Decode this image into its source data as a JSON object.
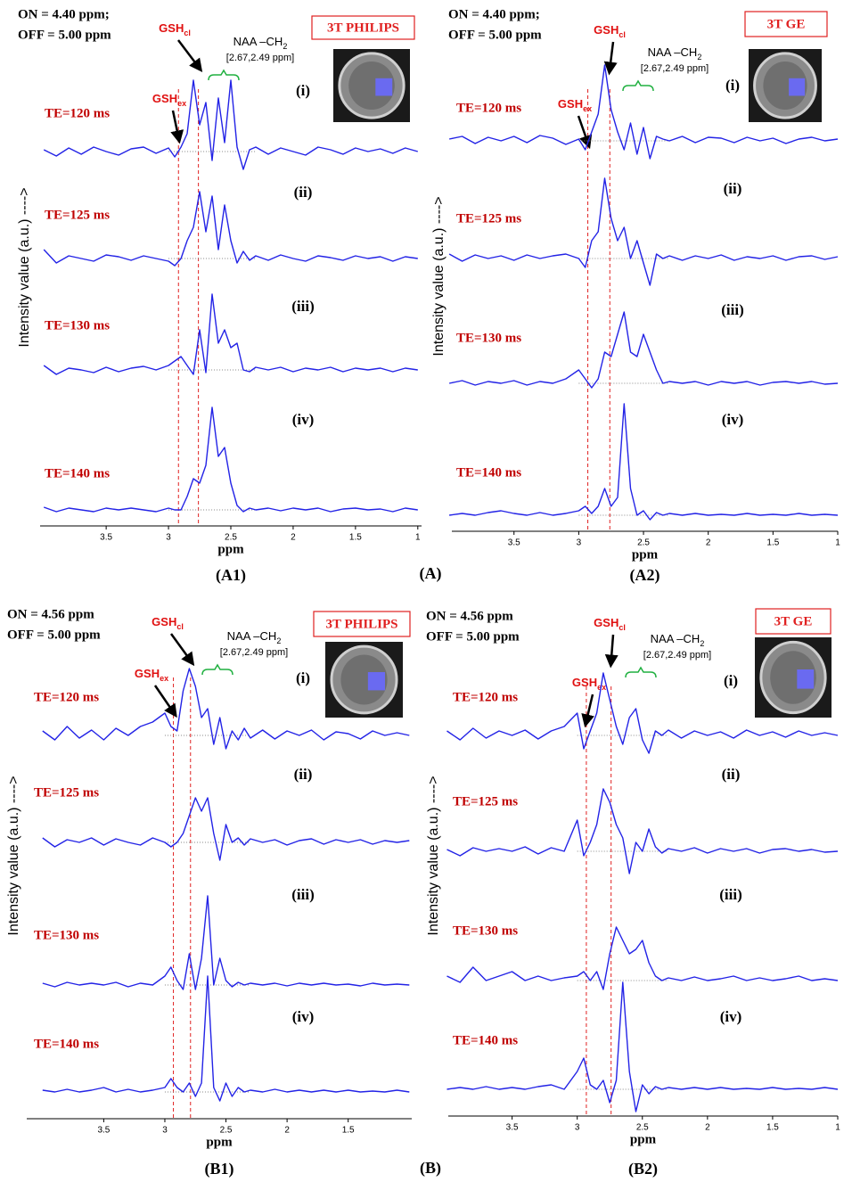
{
  "figure": {
    "group_labels": [
      "(A)",
      "(B)"
    ]
  },
  "chart_data": [
    {
      "type": "line",
      "panel_label": "(A1)",
      "acquisition": [
        "ON = 4.40 ppm;",
        "OFF = 5.00 ppm"
      ],
      "scanner": "3T PHILIPS",
      "ylabel": "Intensity value (a.u.) ---->",
      "xlabel": "ppm",
      "xlim": [
        4.03,
        0.97
      ],
      "xticks": [
        3.5,
        3,
        2.5,
        2,
        1.5,
        1
      ],
      "markers": [
        {
          "name": "GSH",
          "sub": "ex",
          "x": 2.92
        },
        {
          "name": "GSH",
          "sub": "cl",
          "x": 2.76
        }
      ],
      "annotation": {
        "name": "NAA –CH",
        "sub": "2",
        "range": "[2.67,2.49 ppm]"
      },
      "x": [
        4.0,
        3.9,
        3.8,
        3.7,
        3.6,
        3.5,
        3.4,
        3.3,
        3.2,
        3.1,
        3.0,
        2.95,
        2.9,
        2.85,
        2.8,
        2.75,
        2.7,
        2.65,
        2.6,
        2.55,
        2.5,
        2.45,
        2.4,
        2.35,
        2.3,
        2.2,
        2.1,
        2.0,
        1.9,
        1.8,
        1.7,
        1.6,
        1.5,
        1.4,
        1.3,
        1.2,
        1.1,
        1.0
      ],
      "series": [
        {
          "name": "TE=120 ms",
          "tag": "(i)",
          "color": "#2323e6",
          "values": [
            0.02,
            -0.05,
            0.04,
            -0.03,
            0.05,
            0.0,
            -0.04,
            0.03,
            0.05,
            -0.02,
            0.04,
            -0.06,
            0.05,
            0.2,
            0.8,
            0.3,
            0.55,
            -0.1,
            0.6,
            0.1,
            0.8,
            0.05,
            -0.2,
            0.02,
            0.05,
            -0.03,
            0.04,
            0.0,
            -0.04,
            0.05,
            0.02,
            -0.03,
            0.04,
            0.0,
            0.03,
            -0.02,
            0.04,
            0.0
          ]
        },
        {
          "name": "TE=125 ms",
          "tag": "(ii)",
          "color": "#2323e6",
          "values": [
            0.1,
            -0.05,
            0.03,
            0.0,
            -0.03,
            0.04,
            0.02,
            -0.02,
            0.03,
            0.0,
            -0.03,
            -0.08,
            0.0,
            0.2,
            0.35,
            0.75,
            0.3,
            0.7,
            0.1,
            0.6,
            0.2,
            -0.05,
            0.08,
            -0.02,
            0.03,
            -0.02,
            0.04,
            0.0,
            -0.03,
            0.03,
            0.01,
            -0.02,
            0.03,
            0.0,
            0.02,
            -0.03,
            0.02,
            0.0
          ]
        },
        {
          "name": "TE=130 ms",
          "tag": "(iii)",
          "color": "#2323e6",
          "values": [
            0.05,
            -0.05,
            0.02,
            0.0,
            -0.03,
            0.03,
            -0.02,
            0.02,
            0.04,
            0.0,
            0.05,
            0.1,
            0.15,
            0.05,
            -0.05,
            0.45,
            -0.03,
            0.85,
            0.3,
            0.45,
            0.25,
            0.3,
            0.0,
            -0.02,
            0.03,
            0.0,
            0.03,
            -0.02,
            0.02,
            0.0,
            0.03,
            -0.02,
            0.02,
            0.0,
            0.02,
            -0.02,
            0.02,
            0.0
          ]
        },
        {
          "name": "TE=140 ms",
          "tag": "(iv)",
          "color": "#2323e6",
          "values": [
            0.03,
            -0.02,
            0.02,
            0.0,
            -0.02,
            0.02,
            0.0,
            0.02,
            0.0,
            -0.02,
            0.02,
            0.0,
            0.0,
            0.15,
            0.35,
            0.3,
            0.5,
            1.15,
            0.6,
            0.7,
            0.3,
            0.05,
            -0.02,
            0.02,
            0.0,
            0.02,
            -0.01,
            0.02,
            0.0,
            0.02,
            -0.02,
            0.01,
            0.02,
            0.0,
            0.01,
            -0.02,
            0.02,
            0.0
          ]
        }
      ]
    },
    {
      "type": "line",
      "panel_label": "(A2)",
      "acquisition": [
        "ON = 4.40 ppm;",
        "OFF = 5.00 ppm"
      ],
      "scanner": "3T  GE",
      "ylabel": "Intensity value (a.u.) ---->",
      "xlabel": "ppm",
      "xlim": [
        3.98,
        1.0
      ],
      "xticks": [
        3.5,
        3,
        2.5,
        2,
        1.5,
        1
      ],
      "markers": [
        {
          "name": "GSH",
          "sub": "ex",
          "x": 2.93
        },
        {
          "name": "GSH",
          "sub": "cl",
          "x": 2.76
        }
      ],
      "annotation": {
        "name": "NAA –CH",
        "sub": "2",
        "range": "[2.67,2.49 ppm]"
      },
      "x": [
        4.0,
        3.9,
        3.8,
        3.7,
        3.6,
        3.5,
        3.4,
        3.3,
        3.2,
        3.1,
        3.0,
        2.95,
        2.9,
        2.85,
        2.8,
        2.75,
        2.7,
        2.65,
        2.6,
        2.55,
        2.5,
        2.45,
        2.4,
        2.35,
        2.3,
        2.2,
        2.1,
        2.0,
        1.9,
        1.8,
        1.7,
        1.6,
        1.5,
        1.4,
        1.3,
        1.2,
        1.1,
        1.0
      ],
      "series": [
        {
          "name": "TE=120 ms",
          "tag": "(i)",
          "color": "#2323e6",
          "values": [
            0.02,
            0.05,
            -0.03,
            0.04,
            0.0,
            0.05,
            -0.02,
            0.06,
            0.03,
            -0.04,
            0.02,
            -0.1,
            0.1,
            0.3,
            0.85,
            0.35,
            0.1,
            -0.1,
            0.2,
            -0.15,
            0.15,
            -0.2,
            0.05,
            0.02,
            0.0,
            0.05,
            -0.02,
            0.04,
            0.03,
            -0.02,
            0.04,
            0.0,
            0.03,
            -0.03,
            0.02,
            0.04,
            0.0,
            0.02
          ]
        },
        {
          "name": "TE=125 ms",
          "tag": "(ii)",
          "color": "#2323e6",
          "values": [
            0.05,
            -0.03,
            0.04,
            0.0,
            0.03,
            -0.02,
            0.04,
            0.0,
            0.03,
            0.05,
            0.0,
            -0.1,
            0.2,
            0.3,
            0.9,
            0.45,
            0.2,
            0.35,
            0.0,
            0.2,
            -0.05,
            -0.3,
            0.05,
            0.0,
            0.03,
            -0.02,
            0.03,
            0.0,
            0.04,
            -0.02,
            0.02,
            0.0,
            0.03,
            -0.02,
            0.02,
            0.03,
            -0.01,
            0.02
          ]
        },
        {
          "name": "TE=130 ms",
          "tag": "(iii)",
          "color": "#2323e6",
          "values": [
            0.0,
            0.03,
            -0.02,
            0.02,
            0.0,
            0.03,
            -0.02,
            0.02,
            0.0,
            0.05,
            0.15,
            0.05,
            -0.05,
            0.05,
            0.35,
            0.3,
            0.55,
            0.8,
            0.35,
            0.3,
            0.55,
            0.35,
            0.15,
            0.0,
            0.02,
            0.0,
            0.02,
            -0.02,
            0.02,
            0.0,
            0.02,
            -0.02,
            0.01,
            0.02,
            0.0,
            0.02,
            -0.01,
            0.0
          ]
        },
        {
          "name": "TE=140 ms",
          "tag": "(iv)",
          "color": "#2323e6",
          "values": [
            0.0,
            0.02,
            0.0,
            0.03,
            0.05,
            0.02,
            0.0,
            0.03,
            0.0,
            0.02,
            0.05,
            0.1,
            0.02,
            0.1,
            0.3,
            0.1,
            0.2,
            1.25,
            0.3,
            0.0,
            0.05,
            -0.05,
            0.03,
            0.0,
            0.02,
            0.0,
            0.02,
            0.0,
            0.01,
            0.0,
            0.02,
            0.0,
            0.01,
            0.0,
            0.02,
            0.0,
            0.01,
            0.0
          ]
        }
      ]
    },
    {
      "type": "line",
      "panel_label": "(B1)",
      "acquisition": [
        "ON = 4.56 ppm",
        "OFF = 5.00 ppm"
      ],
      "scanner": "3T  PHILIPS",
      "ylabel": "Intensity value (a.u.) ---->",
      "xlabel": "ppm",
      "xlim": [
        4.13,
        0.98
      ],
      "xticks": [
        3.5,
        3,
        2.5,
        2,
        1.5
      ],
      "markers": [
        {
          "name": "GSH",
          "sub": "ex",
          "x": 2.93
        },
        {
          "name": "GSH",
          "sub": "cl",
          "x": 2.79
        }
      ],
      "annotation": {
        "name": "NAA –CH",
        "sub": "2",
        "range": "[2.67,2.49 ppm]"
      },
      "x": [
        4.0,
        3.9,
        3.8,
        3.7,
        3.6,
        3.5,
        3.4,
        3.3,
        3.2,
        3.1,
        3.0,
        2.95,
        2.9,
        2.85,
        2.8,
        2.75,
        2.7,
        2.65,
        2.6,
        2.55,
        2.5,
        2.45,
        2.4,
        2.35,
        2.3,
        2.2,
        2.1,
        2.0,
        1.9,
        1.8,
        1.7,
        1.6,
        1.5,
        1.4,
        1.3,
        1.2,
        1.1,
        1.0
      ],
      "series": [
        {
          "name": "TE=120 ms",
          "tag": "(i)",
          "color": "#2323e6",
          "values": [
            0.05,
            -0.05,
            0.1,
            -0.03,
            0.06,
            -0.05,
            0.08,
            0.0,
            0.1,
            0.15,
            0.25,
            0.1,
            0.05,
            0.5,
            0.75,
            0.55,
            0.2,
            0.3,
            -0.1,
            0.2,
            -0.15,
            0.05,
            -0.05,
            0.08,
            -0.03,
            0.06,
            -0.04,
            0.05,
            0.0,
            0.06,
            -0.05,
            0.04,
            0.02,
            -0.04,
            0.05,
            0.0,
            0.03,
            0.0
          ]
        },
        {
          "name": "TE=125 ms",
          "tag": "(ii)",
          "color": "#2323e6",
          "values": [
            0.05,
            -0.05,
            0.03,
            0.0,
            0.05,
            -0.03,
            0.04,
            0.0,
            -0.03,
            0.05,
            0.0,
            -0.05,
            0.0,
            0.1,
            0.3,
            0.5,
            0.35,
            0.5,
            0.1,
            -0.2,
            0.2,
            0.0,
            0.05,
            -0.03,
            0.04,
            0.0,
            0.03,
            -0.03,
            0.02,
            0.04,
            -0.02,
            0.03,
            0.0,
            0.03,
            -0.02,
            0.02,
            0.0,
            0.02
          ]
        },
        {
          "name": "TE=130 ms",
          "tag": "(iii)",
          "color": "#2323e6",
          "values": [
            0.02,
            -0.02,
            0.03,
            0.0,
            0.02,
            0.0,
            0.03,
            -0.02,
            0.02,
            0.0,
            0.1,
            0.2,
            0.05,
            -0.05,
            0.35,
            -0.05,
            0.3,
            1.0,
            0.0,
            0.3,
            0.05,
            -0.02,
            0.03,
            0.0,
            0.02,
            0.0,
            0.02,
            -0.01,
            0.02,
            0.0,
            0.02,
            0.0,
            0.01,
            -0.01,
            0.02,
            0.0,
            0.01,
            0.0
          ]
        },
        {
          "name": "TE=140 ms",
          "tag": "(iv)",
          "color": "#2323e6",
          "values": [
            0.02,
            0.0,
            0.03,
            0.0,
            0.02,
            0.05,
            0.0,
            0.03,
            0.0,
            0.02,
            0.05,
            0.15,
            0.05,
            0.0,
            0.1,
            -0.05,
            0.1,
            1.3,
            0.05,
            -0.1,
            0.1,
            -0.05,
            0.05,
            0.0,
            0.02,
            0.0,
            0.03,
            0.0,
            0.02,
            0.0,
            0.02,
            0.0,
            0.02,
            0.0,
            0.01,
            0.0,
            0.02,
            0.0
          ]
        }
      ]
    },
    {
      "type": "line",
      "panel_label": "(B2)",
      "acquisition": [
        "ON = 4.56 ppm",
        "OFF = 5.00 ppm"
      ],
      "scanner": "3T  GE",
      "ylabel": "Intensity value (a.u.) ---->",
      "xlabel": "ppm",
      "xlim": [
        3.99,
        1.0
      ],
      "xticks": [
        3.5,
        3,
        2.5,
        2,
        1.5,
        1
      ],
      "markers": [
        {
          "name": "GSH",
          "sub": "ex",
          "x": 2.93
        },
        {
          "name": "GSH",
          "sub": "cl",
          "x": 2.74
        }
      ],
      "annotation": {
        "name": "NAA –CH",
        "sub": "2",
        "range": "[2.67,2.49 ppm]"
      },
      "x": [
        4.0,
        3.9,
        3.8,
        3.7,
        3.6,
        3.5,
        3.4,
        3.3,
        3.2,
        3.1,
        3.0,
        2.95,
        2.9,
        2.85,
        2.8,
        2.75,
        2.7,
        2.65,
        2.6,
        2.55,
        2.5,
        2.45,
        2.4,
        2.35,
        2.3,
        2.2,
        2.1,
        2.0,
        1.9,
        1.8,
        1.7,
        1.6,
        1.5,
        1.4,
        1.3,
        1.2,
        1.1,
        1.0
      ],
      "series": [
        {
          "name": "TE=120 ms",
          "tag": "(i)",
          "color": "#2323e6",
          "values": [
            0.05,
            -0.05,
            0.08,
            -0.03,
            0.05,
            0.0,
            0.06,
            -0.04,
            0.05,
            0.1,
            0.25,
            -0.15,
            0.05,
            0.25,
            0.7,
            0.4,
            0.1,
            -0.1,
            0.2,
            0.3,
            -0.05,
            -0.2,
            0.05,
            0.0,
            0.06,
            -0.03,
            0.05,
            0.0,
            0.04,
            -0.03,
            0.06,
            0.0,
            0.04,
            -0.02,
            0.05,
            0.0,
            0.03,
            0.0
          ]
        },
        {
          "name": "TE=125 ms",
          "tag": "(ii)",
          "color": "#2323e6",
          "values": [
            0.02,
            -0.05,
            0.04,
            0.0,
            0.03,
            0.0,
            0.05,
            -0.03,
            0.04,
            0.0,
            0.35,
            -0.05,
            0.1,
            0.3,
            0.7,
            0.55,
            0.3,
            0.15,
            -0.25,
            0.1,
            0.0,
            0.25,
            0.05,
            -0.02,
            0.03,
            0.0,
            0.04,
            -0.02,
            0.03,
            0.0,
            0.03,
            -0.02,
            0.02,
            0.03,
            0.0,
            0.02,
            -0.01,
            0.0
          ]
        },
        {
          "name": "TE=130 ms",
          "tag": "(iii)",
          "color": "#2323e6",
          "values": [
            0.05,
            -0.02,
            0.15,
            0.0,
            0.05,
            0.1,
            0.0,
            0.05,
            0.0,
            0.03,
            0.05,
            0.1,
            0.0,
            0.1,
            -0.1,
            0.3,
            0.6,
            0.45,
            0.3,
            0.35,
            0.45,
            0.2,
            0.05,
            0.0,
            0.03,
            0.0,
            0.04,
            0.0,
            0.02,
            0.05,
            0.0,
            0.03,
            0.0,
            0.02,
            0.05,
            0.0,
            0.02,
            0.0
          ]
        },
        {
          "name": "TE=140 ms",
          "tag": "(iv)",
          "color": "#2323e6",
          "values": [
            0.0,
            0.02,
            0.0,
            0.03,
            0.0,
            0.02,
            0.0,
            0.03,
            0.05,
            0.0,
            0.2,
            0.35,
            0.05,
            0.0,
            0.1,
            -0.15,
            0.1,
            1.2,
            0.2,
            -0.25,
            0.05,
            -0.05,
            0.03,
            0.0,
            0.02,
            0.0,
            0.02,
            0.0,
            0.02,
            0.0,
            0.01,
            0.0,
            0.02,
            0.0,
            0.01,
            0.0,
            0.02,
            0.0
          ]
        }
      ]
    }
  ]
}
